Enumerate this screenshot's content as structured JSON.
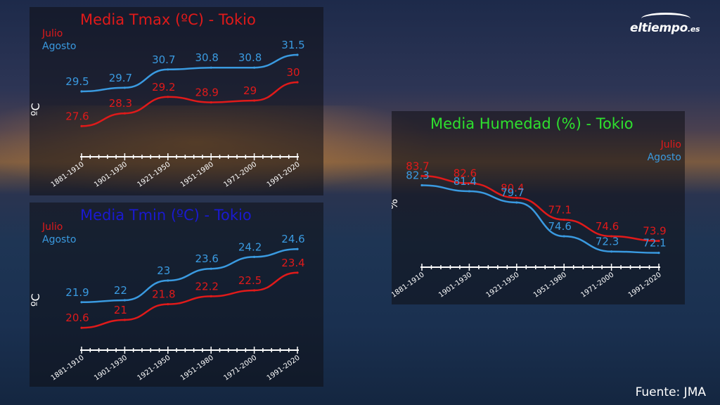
{
  "logo": {
    "main": "eltiempo",
    "domain": ".es"
  },
  "source": "Fuente: JMA",
  "colors": {
    "julio": "#e01a1a",
    "agosto": "#3a9ae0",
    "title_tmax": "#e01a1a",
    "title_tmin": "#1a1ad0",
    "title_hum": "#2ee02e"
  },
  "chart_data": [
    {
      "id": "tmax",
      "type": "line",
      "title": "Media Tmax (ºC) - Tokio",
      "ylabel": "ºC",
      "categories": [
        "1881-1910",
        "1901-1930",
        "1921-1950",
        "1951-1980",
        "1971-2000",
        "1991-2020"
      ],
      "ylim": [
        27,
        32
      ],
      "legend_placement": "top-left",
      "series": [
        {
          "name": "Julio",
          "color": "julio",
          "values": [
            27.6,
            28.3,
            29.2,
            28.9,
            29,
            30
          ]
        },
        {
          "name": "Agosto",
          "color": "agosto",
          "values": [
            29.5,
            29.7,
            30.7,
            30.8,
            30.8,
            31.5
          ]
        }
      ]
    },
    {
      "id": "tmin",
      "type": "line",
      "title": "Media Tmin (ºC) - Tokio",
      "ylabel": "ºC",
      "categories": [
        "1881-1910",
        "1901-1930",
        "1921-1950",
        "1951-1980",
        "1971-2000",
        "1991-2020"
      ],
      "ylim": [
        20,
        25
      ],
      "legend_placement": "top-left",
      "series": [
        {
          "name": "Julio",
          "color": "julio",
          "values": [
            20.6,
            21,
            21.8,
            22.2,
            22.5,
            23.4
          ]
        },
        {
          "name": "Agosto",
          "color": "agosto",
          "values": [
            21.9,
            22,
            23,
            23.6,
            24.2,
            24.6
          ]
        }
      ]
    },
    {
      "id": "hum",
      "type": "line",
      "title": "Media Humedad (%) - Tokio",
      "ylabel": "%",
      "categories": [
        "1881-1910",
        "1901-1930",
        "1921-1950",
        "1951-1980",
        "1971-2000",
        "1991-2020"
      ],
      "ylim": [
        71,
        85
      ],
      "legend_placement": "top-right",
      "series": [
        {
          "name": "Julio",
          "color": "julio",
          "values": [
            83.7,
            82.6,
            80.4,
            77.1,
            74.6,
            73.9
          ]
        },
        {
          "name": "Agosto",
          "color": "agosto",
          "values": [
            82.3,
            81.4,
            79.7,
            74.6,
            72.3,
            72.1
          ]
        }
      ]
    }
  ]
}
